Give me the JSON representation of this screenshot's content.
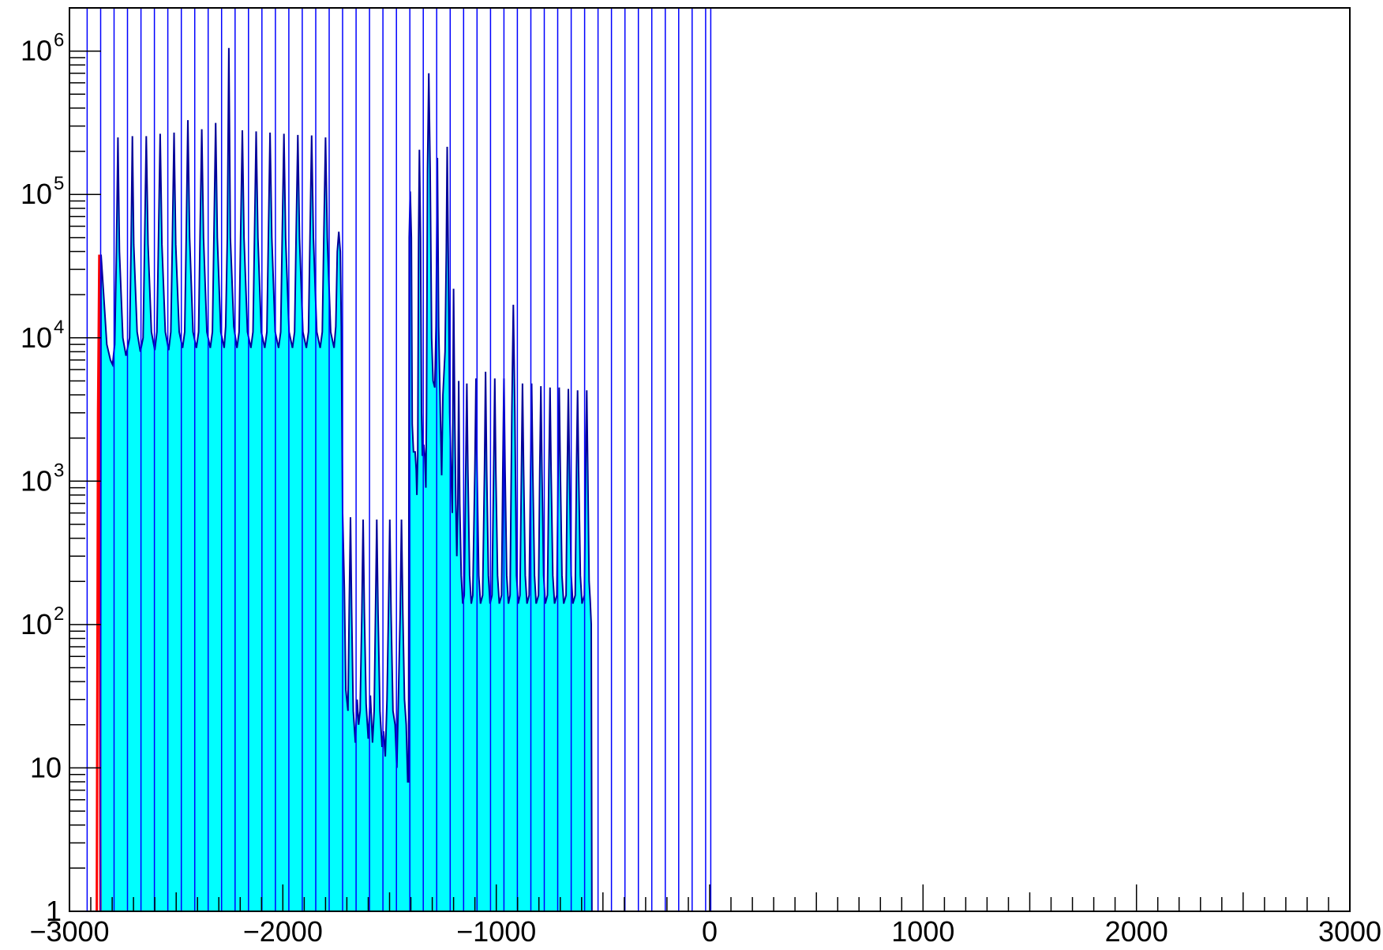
{
  "chart_data": {
    "type": "area",
    "title": "",
    "xlabel": "",
    "ylabel": "",
    "xlim": [
      -3000,
      3000
    ],
    "ylim": [
      1,
      2000000
    ],
    "yscale": "log",
    "grid": false,
    "legend": "none",
    "colors": {
      "fill": "#00ffff",
      "outline": "#000099",
      "markers": "#0000ff",
      "highlight": "#ff0000"
    },
    "x_ticks": [
      {
        "value": -3000,
        "label": "−3000"
      },
      {
        "value": -2000,
        "label": "−2000"
      },
      {
        "value": -1000,
        "label": "−1000"
      },
      {
        "value": 0,
        "label": "0"
      },
      {
        "value": 1000,
        "label": "1000"
      },
      {
        "value": 2000,
        "label": "2000"
      },
      {
        "value": 3000,
        "label": "3000"
      }
    ],
    "y_ticks": [
      {
        "value": 1,
        "base": "1",
        "exp": ""
      },
      {
        "value": 10,
        "base": "10",
        "exp": ""
      },
      {
        "value": 100,
        "base": "10",
        "exp": "2"
      },
      {
        "value": 1000,
        "base": "10",
        "exp": "3"
      },
      {
        "value": 10000,
        "base": "10",
        "exp": "4"
      },
      {
        "value": 100000,
        "base": "10",
        "exp": "5"
      },
      {
        "value": 1000000,
        "base": "10",
        "exp": "6"
      }
    ],
    "vertical_markers": [
      -2917,
      -2854,
      -2791,
      -2728,
      -2665,
      -2602,
      -2539,
      -2476,
      -2413,
      -2350,
      -2287,
      -2224,
      -2161,
      -2098,
      -2035,
      -1972,
      -1909,
      -1846,
      -1783,
      -1720,
      -1657,
      -1594,
      -1531,
      -1468,
      -1405,
      -1342,
      -1279,
      -1216,
      -1153,
      -1090,
      -1027,
      -964,
      -901,
      -838,
      -775,
      -712,
      -649,
      -586,
      -523,
      -460,
      -397,
      -334,
      -271,
      -208,
      -145,
      -82,
      -19,
      5
    ],
    "series": [
      {
        "points": [
          [
            -2855,
            1
          ],
          [
            -2852,
            38000
          ],
          [
            -2840,
            20000
          ],
          [
            -2825,
            9000
          ],
          [
            -2808,
            7000
          ],
          [
            -2798,
            6500
          ],
          [
            -2788,
            9000
          ],
          [
            -2780,
            40000
          ],
          [
            -2773,
            250000
          ],
          [
            -2766,
            40000
          ],
          [
            -2750,
            10000
          ],
          [
            -2735,
            7500
          ],
          [
            -2718,
            10000
          ],
          [
            -2711,
            45000
          ],
          [
            -2705,
            255000
          ],
          [
            -2699,
            45000
          ],
          [
            -2683,
            11000
          ],
          [
            -2668,
            8000
          ],
          [
            -2655,
            10000
          ],
          [
            -2648,
            45000
          ],
          [
            -2640,
            255000
          ],
          [
            -2632,
            45000
          ],
          [
            -2616,
            11000
          ],
          [
            -2600,
            8200
          ],
          [
            -2590,
            11000
          ],
          [
            -2583,
            45000
          ],
          [
            -2575,
            265000
          ],
          [
            -2567,
            45000
          ],
          [
            -2551,
            11000
          ],
          [
            -2535,
            8200
          ],
          [
            -2525,
            11000
          ],
          [
            -2518,
            45000
          ],
          [
            -2510,
            270000
          ],
          [
            -2502,
            45000
          ],
          [
            -2486,
            11000
          ],
          [
            -2470,
            8500
          ],
          [
            -2460,
            11000
          ],
          [
            -2453,
            50000
          ],
          [
            -2445,
            330000
          ],
          [
            -2437,
            50000
          ],
          [
            -2421,
            11000
          ],
          [
            -2405,
            8500
          ],
          [
            -2395,
            11000
          ],
          [
            -2388,
            50000
          ],
          [
            -2380,
            285000
          ],
          [
            -2372,
            50000
          ],
          [
            -2356,
            11000
          ],
          [
            -2340,
            8500
          ],
          [
            -2330,
            11000
          ],
          [
            -2323,
            50000
          ],
          [
            -2315,
            315000
          ],
          [
            -2307,
            50000
          ],
          [
            -2291,
            11000
          ],
          [
            -2275,
            8500
          ],
          [
            -2268,
            12000
          ],
          [
            -2260,
            50000
          ],
          [
            -2253,
            1050000
          ],
          [
            -2246,
            50000
          ],
          [
            -2230,
            12000
          ],
          [
            -2215,
            8500
          ],
          [
            -2205,
            11000
          ],
          [
            -2198,
            50000
          ],
          [
            -2190,
            280000
          ],
          [
            -2182,
            50000
          ],
          [
            -2166,
            11000
          ],
          [
            -2150,
            8500
          ],
          [
            -2140,
            11000
          ],
          [
            -2133,
            50000
          ],
          [
            -2125,
            275000
          ],
          [
            -2117,
            50000
          ],
          [
            -2101,
            11000
          ],
          [
            -2085,
            8500
          ],
          [
            -2075,
            11000
          ],
          [
            -2068,
            50000
          ],
          [
            -2060,
            270000
          ],
          [
            -2052,
            50000
          ],
          [
            -2036,
            11000
          ],
          [
            -2020,
            8500
          ],
          [
            -2010,
            11000
          ],
          [
            -2003,
            50000
          ],
          [
            -1995,
            265000
          ],
          [
            -1987,
            50000
          ],
          [
            -1971,
            11000
          ],
          [
            -1955,
            8500
          ],
          [
            -1945,
            11000
          ],
          [
            -1938,
            50000
          ],
          [
            -1930,
            260000
          ],
          [
            -1922,
            50000
          ],
          [
            -1906,
            11000
          ],
          [
            -1890,
            8500
          ],
          [
            -1880,
            11000
          ],
          [
            -1873,
            50000
          ],
          [
            -1865,
            258000
          ],
          [
            -1857,
            50000
          ],
          [
            -1841,
            11000
          ],
          [
            -1825,
            8500
          ],
          [
            -1815,
            11000
          ],
          [
            -1808,
            50000
          ],
          [
            -1800,
            250000
          ],
          [
            -1792,
            50000
          ],
          [
            -1776,
            11000
          ],
          [
            -1760,
            8500
          ],
          [
            -1752,
            12000
          ],
          [
            -1745,
            40000
          ],
          [
            -1738,
            55000
          ],
          [
            -1731,
            40000
          ],
          [
            -1726,
            12000
          ],
          [
            -1720,
            600
          ],
          [
            -1712,
            180
          ],
          [
            -1705,
            35
          ],
          [
            -1695,
            25
          ],
          [
            -1689,
            130
          ],
          [
            -1683,
            560
          ],
          [
            -1678,
            130
          ],
          [
            -1670,
            25
          ],
          [
            -1660,
            15
          ],
          [
            -1652,
            30
          ],
          [
            -1645,
            20
          ],
          [
            -1638,
            25
          ],
          [
            -1630,
            120
          ],
          [
            -1624,
            540
          ],
          [
            -1618,
            120
          ],
          [
            -1610,
            28
          ],
          [
            -1600,
            16
          ],
          [
            -1590,
            32
          ],
          [
            -1580,
            15
          ],
          [
            -1572,
            25
          ],
          [
            -1566,
            120
          ],
          [
            -1560,
            540
          ],
          [
            -1554,
            120
          ],
          [
            -1545,
            25
          ],
          [
            -1535,
            14
          ],
          [
            -1528,
            18
          ],
          [
            -1520,
            12
          ],
          [
            -1512,
            30
          ],
          [
            -1505,
            120
          ],
          [
            -1499,
            540
          ],
          [
            -1493,
            120
          ],
          [
            -1484,
            25
          ],
          [
            -1474,
            20
          ],
          [
            -1466,
            10
          ],
          [
            -1458,
            35
          ],
          [
            -1450,
            120
          ],
          [
            -1444,
            540
          ],
          [
            -1438,
            120
          ],
          [
            -1430,
            30
          ],
          [
            -1422,
            20
          ],
          [
            -1415,
            8
          ],
          [
            -1411,
            8
          ],
          [
            -1408,
            50000
          ],
          [
            -1403,
            105000
          ],
          [
            -1398,
            50000
          ],
          [
            -1394,
            2500
          ],
          [
            -1388,
            1600
          ],
          [
            -1380,
            1600
          ],
          [
            -1375,
            1200
          ],
          [
            -1372,
            800
          ],
          [
            -1368,
            1500
          ],
          [
            -1364,
            50000
          ],
          [
            -1360,
            205000
          ],
          [
            -1355,
            50000
          ],
          [
            -1350,
            3000
          ],
          [
            -1346,
            1500
          ],
          [
            -1340,
            1800
          ],
          [
            -1335,
            1500
          ],
          [
            -1330,
            900
          ],
          [
            -1327,
            3000
          ],
          [
            -1322,
            150000
          ],
          [
            -1316,
            700000
          ],
          [
            -1310,
            150000
          ],
          [
            -1303,
            10000
          ],
          [
            -1296,
            5000
          ],
          [
            -1288,
            4500
          ],
          [
            -1282,
            12000
          ],
          [
            -1276,
            180000
          ],
          [
            -1270,
            12000
          ],
          [
            -1262,
            3000
          ],
          [
            -1256,
            1100
          ],
          [
            -1250,
            4000
          ],
          [
            -1240,
            8000
          ],
          [
            -1234,
            40000
          ],
          [
            -1230,
            215000
          ],
          [
            -1225,
            40000
          ],
          [
            -1218,
            3000
          ],
          [
            -1212,
            1200
          ],
          [
            -1206,
            600
          ],
          [
            -1200,
            22000
          ],
          [
            -1195,
            3000
          ],
          [
            -1190,
            800
          ],
          [
            -1185,
            300
          ],
          [
            -1180,
            700
          ],
          [
            -1176,
            5000
          ],
          [
            -1171,
            700
          ],
          [
            -1164,
            220
          ],
          [
            -1157,
            140
          ],
          [
            -1150,
            160
          ],
          [
            -1143,
            1200
          ],
          [
            -1138,
            4800
          ],
          [
            -1133,
            1200
          ],
          [
            -1125,
            220
          ],
          [
            -1117,
            140
          ],
          [
            -1110,
            160
          ],
          [
            -1100,
            1200
          ],
          [
            -1095,
            5200
          ],
          [
            -1090,
            1200
          ],
          [
            -1082,
            220
          ],
          [
            -1074,
            140
          ],
          [
            -1064,
            160
          ],
          [
            -1055,
            1200
          ],
          [
            -1050,
            5800
          ],
          [
            -1045,
            1200
          ],
          [
            -1037,
            220
          ],
          [
            -1029,
            140
          ],
          [
            -1020,
            160
          ],
          [
            -1012,
            1200
          ],
          [
            -1007,
            5200
          ],
          [
            -1002,
            1200
          ],
          [
            -994,
            220
          ],
          [
            -986,
            140
          ],
          [
            -975,
            160
          ],
          [
            -969,
            1200
          ],
          [
            -964,
            5200
          ],
          [
            -959,
            1200
          ],
          [
            -951,
            220
          ],
          [
            -943,
            140
          ],
          [
            -935,
            160
          ],
          [
            -927,
            3000
          ],
          [
            -920,
            17000
          ],
          [
            -913,
            3000
          ],
          [
            -905,
            220
          ],
          [
            -897,
            140
          ],
          [
            -889,
            160
          ],
          [
            -882,
            1200
          ],
          [
            -877,
            4800
          ],
          [
            -872,
            1200
          ],
          [
            -864,
            220
          ],
          [
            -856,
            140
          ],
          [
            -846,
            160
          ],
          [
            -839,
            1200
          ],
          [
            -834,
            4800
          ],
          [
            -829,
            1200
          ],
          [
            -821,
            220
          ],
          [
            -813,
            140
          ],
          [
            -802,
            160
          ],
          [
            -796,
            1200
          ],
          [
            -791,
            4600
          ],
          [
            -786,
            1200
          ],
          [
            -778,
            220
          ],
          [
            -770,
            140
          ],
          [
            -760,
            160
          ],
          [
            -753,
            1200
          ],
          [
            -748,
            4500
          ],
          [
            -743,
            1200
          ],
          [
            -735,
            220
          ],
          [
            -727,
            140
          ],
          [
            -716,
            160
          ],
          [
            -710,
            1200
          ],
          [
            -705,
            4500
          ],
          [
            -700,
            1200
          ],
          [
            -692,
            220
          ],
          [
            -684,
            140
          ],
          [
            -673,
            160
          ],
          [
            -667,
            1200
          ],
          [
            -662,
            4400
          ],
          [
            -657,
            1200
          ],
          [
            -649,
            220
          ],
          [
            -641,
            140
          ],
          [
            -630,
            160
          ],
          [
            -624,
            1200
          ],
          [
            -619,
            4300
          ],
          [
            -614,
            1200
          ],
          [
            -606,
            220
          ],
          [
            -598,
            140
          ],
          [
            -587,
            160
          ],
          [
            -581,
            1200
          ],
          [
            -576,
            4300
          ],
          [
            -571,
            1200
          ],
          [
            -565,
            200
          ],
          [
            -560,
            150
          ],
          [
            -555,
            100
          ],
          [
            -552,
            1
          ]
        ],
        "highlight": [
          [
            -2872,
            1
          ],
          [
            -2866,
            3000
          ],
          [
            -2860,
            38000
          ],
          [
            -2855,
            1
          ]
        ]
      }
    ]
  }
}
